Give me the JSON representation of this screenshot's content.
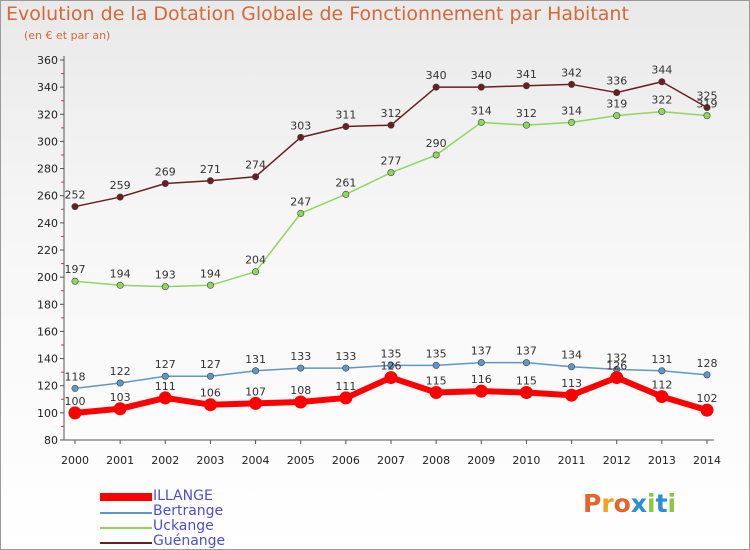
{
  "title": "Evolution de la Dotation Globale de Fonctionnement par Habitant",
  "subtitle": "(en € et par an)",
  "logo": {
    "text": "Proxiti",
    "colors": [
      "#e8622a",
      "#f4a11e",
      "#e8622a",
      "#2a8fd8",
      "#8cc63f",
      "#2a8fd8",
      "#8cc63f"
    ]
  },
  "chart_data": {
    "type": "line",
    "x": [
      2000,
      2001,
      2002,
      2003,
      2004,
      2005,
      2006,
      2007,
      2008,
      2009,
      2010,
      2011,
      2012,
      2013,
      2014
    ],
    "ylim": [
      80,
      360
    ],
    "yticks": [
      80,
      100,
      120,
      140,
      160,
      180,
      200,
      220,
      240,
      260,
      280,
      300,
      320,
      340,
      360
    ],
    "grid": false,
    "legend_position": "bottom-left",
    "series": [
      {
        "name": "Guénange",
        "color": "#6b1e22",
        "values": [
          252,
          259,
          269,
          271,
          274,
          303,
          311,
          312,
          340,
          340,
          341,
          342,
          336,
          344,
          325
        ]
      },
      {
        "name": "Uckange",
        "color": "#8fd65e",
        "values": [
          197,
          194,
          193,
          194,
          204,
          247,
          261,
          277,
          290,
          314,
          312,
          314,
          319,
          322,
          319
        ]
      },
      {
        "name": "Bertrange",
        "color": "#5f97c9",
        "values": [
          118,
          122,
          127,
          127,
          131,
          133,
          133,
          135,
          135,
          137,
          137,
          134,
          132,
          131,
          128
        ]
      },
      {
        "name": "ILLANGE",
        "color": "#ff0000",
        "values": [
          100,
          103,
          111,
          106,
          107,
          108,
          111,
          126,
          115,
          116,
          115,
          113,
          126,
          112,
          102
        ]
      }
    ]
  }
}
